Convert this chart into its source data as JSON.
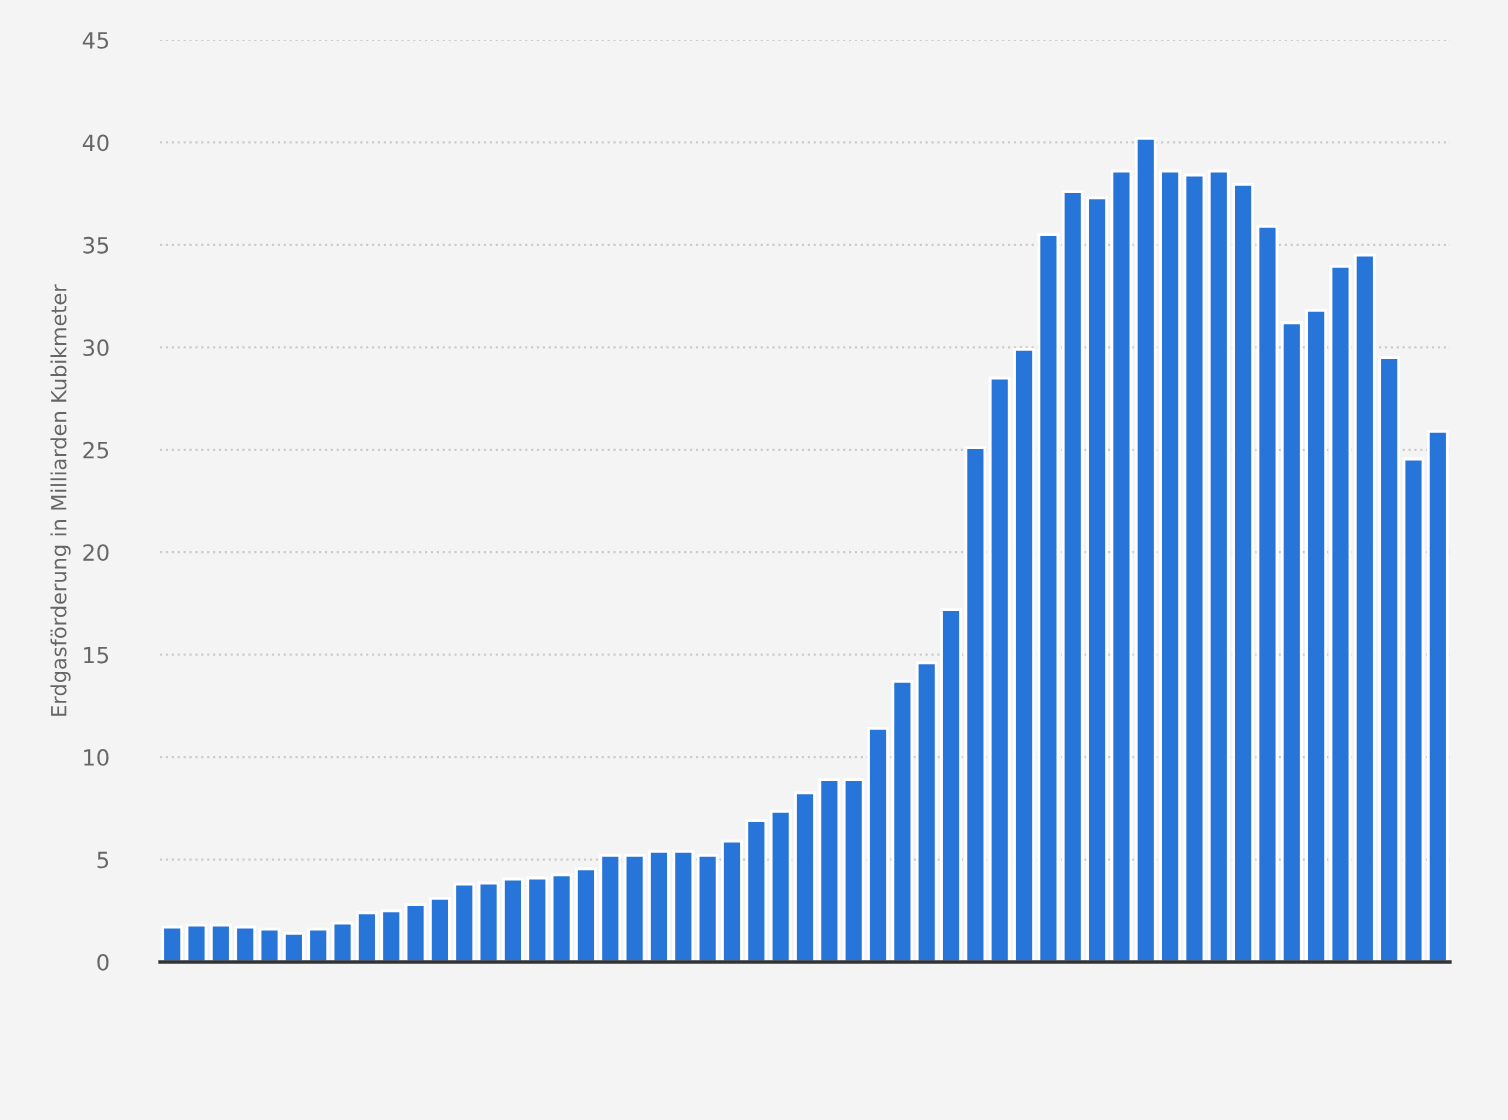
{
  "chart_data": {
    "type": "bar",
    "ylabel": "Erdgasförderung in Milliarden Kubikmeter",
    "categories": [
      null,
      null,
      null,
      null,
      null,
      null,
      null,
      null,
      null,
      null,
      null,
      null,
      null,
      null,
      null,
      null,
      null,
      null,
      null,
      null,
      null,
      null,
      null,
      null,
      null,
      null,
      null,
      null,
      null,
      null,
      null,
      null,
      null,
      null,
      null,
      null,
      null,
      null,
      null,
      null,
      null,
      null,
      null,
      null,
      null,
      null,
      null,
      null,
      null,
      null,
      null,
      null,
      null
    ],
    "values": [
      1.7,
      1.8,
      1.8,
      1.7,
      1.6,
      1.4,
      1.6,
      1.9,
      2.4,
      2.5,
      2.8,
      3.1,
      3.8,
      3.85,
      4.05,
      4.1,
      4.25,
      4.55,
      5.2,
      5.2,
      5.4,
      5.4,
      5.2,
      5.9,
      6.9,
      7.35,
      8.25,
      8.9,
      8.9,
      11.4,
      13.7,
      14.6,
      17.2,
      25.1,
      28.5,
      29.9,
      35.5,
      37.6,
      37.3,
      38.6,
      40.2,
      38.6,
      38.4,
      38.6,
      37.95,
      35.9,
      31.2,
      31.8,
      33.95,
      34.5,
      29.5,
      24.55,
      25.9
    ],
    "color": "#2875d9",
    "ylim": [
      0,
      45
    ],
    "yticks": [
      0,
      5,
      10,
      15,
      20,
      25,
      30,
      35,
      40,
      45
    ],
    "grid": "y"
  }
}
